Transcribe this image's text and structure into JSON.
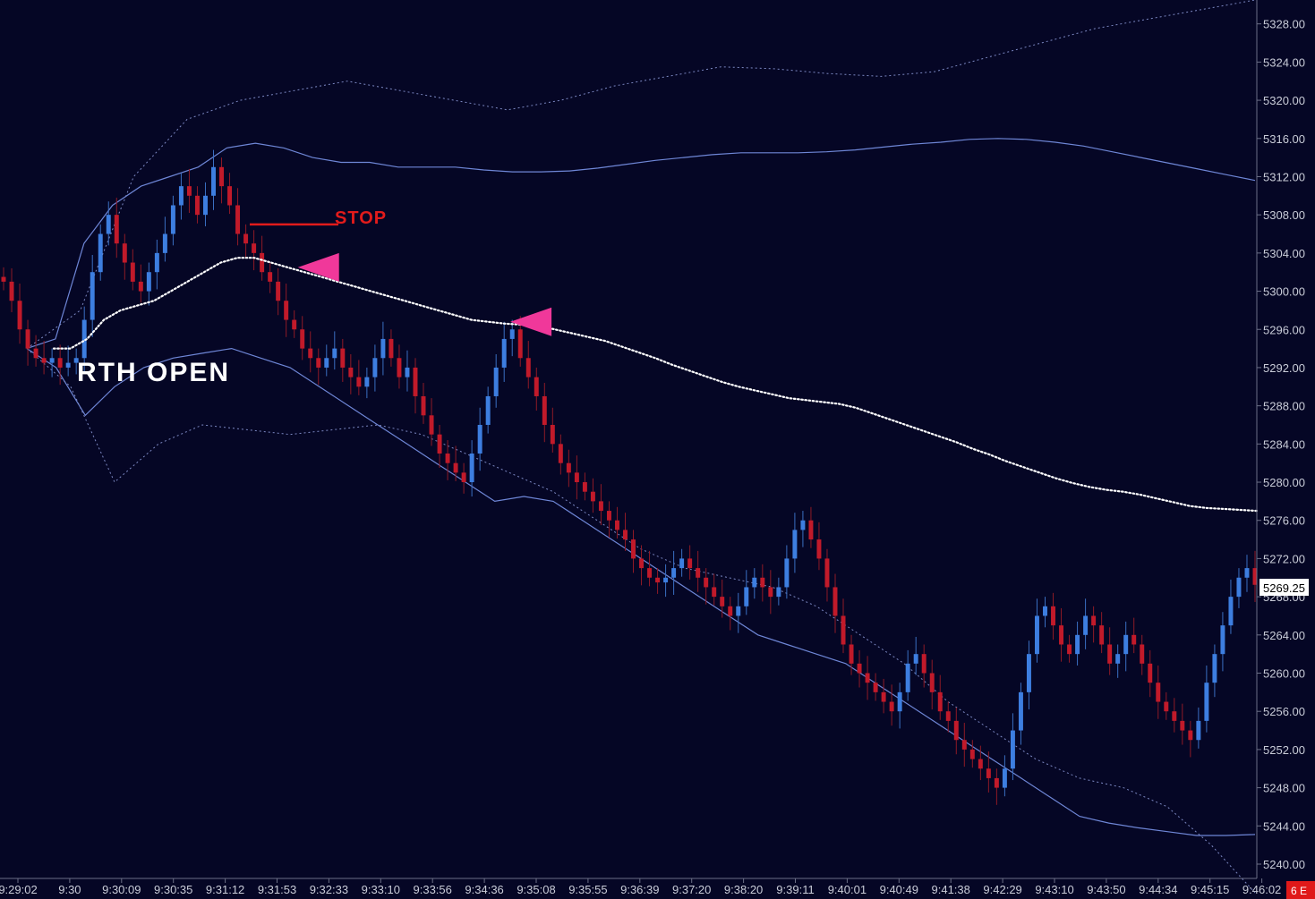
{
  "chart_data": {
    "type": "candlestick",
    "price_axis": {
      "ylim": [
        5238.5,
        5330.5
      ],
      "ticks": [
        "5328.00",
        "5324.00",
        "5320.00",
        "5316.00",
        "5312.00",
        "5308.00",
        "5304.00",
        "5300.00",
        "5296.00",
        "5292.00",
        "5288.00",
        "5284.00",
        "5280.00",
        "5276.00",
        "5272.00",
        "5268.00",
        "5264.00",
        "5260.00",
        "5256.00",
        "5252.00",
        "5248.00",
        "5244.00",
        "5240.00"
      ],
      "last_price": "5269.25"
    },
    "time_axis": {
      "ticks": [
        "9:29:02",
        "9:30",
        "9:30:09",
        "9:30:35",
        "9:31:12",
        "9:31:53",
        "9:32:33",
        "9:33:10",
        "9:33:56",
        "9:34:36",
        "9:35:08",
        "9:35:55",
        "9:36:39",
        "9:37:20",
        "9:38:20",
        "9:39:11",
        "9:40:01",
        "9:40:49",
        "9:41:38",
        "9:42:29",
        "9:43:10",
        "9:43:50",
        "9:44:34",
        "9:45:15",
        "9:46:02"
      ]
    },
    "corner_badge": "6 E",
    "annotations": {
      "stop_label": "STOP",
      "stop_price": 5307,
      "rth_open_label": "RTH OPEN",
      "entry_markers": [
        {
          "time_index": 5.85,
          "price": 5302.5
        },
        {
          "time_index": 9.95,
          "price": 5296.8
        }
      ]
    },
    "close_series": [
      5301,
      5299,
      5296,
      5294,
      5293,
      5292.5,
      5293,
      5292,
      5292.5,
      5293,
      5297,
      5302,
      5306,
      5308,
      5305,
      5303,
      5301,
      5300,
      5302,
      5304,
      5306,
      5309,
      5311,
      5310,
      5308,
      5310,
      5313,
      5311,
      5309,
      5306,
      5305,
      5304,
      5302,
      5301,
      5299,
      5297,
      5296,
      5294,
      5293,
      5292,
      5293,
      5294,
      5292,
      5291,
      5290,
      5291,
      5293,
      5295,
      5293,
      5291,
      5292,
      5289,
      5287,
      5285,
      5283,
      5282,
      5281,
      5280,
      5283,
      5286,
      5289,
      5292,
      5295,
      5296,
      5293,
      5291,
      5289,
      5286,
      5284,
      5282,
      5281,
      5280,
      5279,
      5278,
      5277,
      5276,
      5275,
      5274,
      5272,
      5271,
      5270,
      5269.5,
      5270,
      5271,
      5272,
      5271,
      5270,
      5269,
      5268,
      5267,
      5266,
      5267,
      5269,
      5270,
      5269,
      5268,
      5269,
      5272,
      5275,
      5276,
      5274,
      5272,
      5269,
      5266,
      5263,
      5261,
      5260,
      5259,
      5258,
      5257,
      5256,
      5258,
      5261,
      5262,
      5260,
      5258,
      5256,
      5255,
      5253,
      5252,
      5251,
      5250,
      5249,
      5248,
      5250,
      5254,
      5258,
      5262,
      5266,
      5267,
      5265,
      5263,
      5262,
      5264,
      5266,
      5265,
      5263,
      5261,
      5262,
      5264,
      5263,
      5261,
      5259,
      5257,
      5256,
      5255,
      5254,
      5253,
      5255,
      5259,
      5262,
      5265,
      5268,
      5270,
      5271,
      5269.25
    ],
    "series": [
      {
        "role": "vwap",
        "values": [
          5294,
          5294,
          5295,
          5297,
          5298,
          5298.5,
          5299,
          5300,
          5301,
          5302,
          5303,
          5303.5,
          5303.5,
          5303,
          5302.5,
          5302,
          5301.5,
          5301,
          5300.5,
          5300,
          5299.5,
          5299,
          5298.5,
          5298,
          5297.5,
          5297,
          5296.8,
          5296.6,
          5296.5,
          5296.4,
          5296,
          5295.6,
          5295.2,
          5294.8,
          5294.2,
          5293.6,
          5293,
          5292.3,
          5291.7,
          5291.1,
          5290.5,
          5290,
          5289.6,
          5289.2,
          5288.8,
          5288.6,
          5288.4,
          5288.2,
          5287.8,
          5287.2,
          5286.6,
          5286,
          5285.4,
          5284.8,
          5284.2,
          5283.5,
          5282.9,
          5282.2,
          5281.6,
          5281,
          5280.4,
          5279.9,
          5279.5,
          5279.2,
          5279,
          5278.7,
          5278.3,
          5277.9,
          5277.5,
          5277.3,
          5277.2,
          5277.1,
          5277
        ]
      },
      {
        "role": "band-upper-1",
        "values": [
          5294,
          5295,
          5305,
          5309,
          5311,
          5312,
          5313,
          5315,
          5315.5,
          5315,
          5314,
          5313.5,
          5313.5,
          5313,
          5313,
          5313,
          5312.7,
          5312.5,
          5312.5,
          5312.6,
          5312.9,
          5313.3,
          5313.7,
          5314,
          5314.3,
          5314.5,
          5314.5,
          5314.5,
          5314.6,
          5314.8,
          5315.1,
          5315.4,
          5315.6,
          5315.9,
          5316,
          5315.9,
          5315.6,
          5315.2,
          5314.6,
          5314,
          5313.4,
          5312.8,
          5312.2,
          5311.6
        ]
      },
      {
        "role": "band-lower-1",
        "values": [
          5294,
          5292,
          5287,
          5290,
          5292,
          5293,
          5293.5,
          5294,
          5293,
          5292,
          5290,
          5288,
          5286,
          5284,
          5282,
          5280,
          5278,
          5278.5,
          5278,
          5276,
          5274,
          5272,
          5270,
          5268,
          5266,
          5264,
          5263,
          5262,
          5261,
          5259,
          5257,
          5255,
          5253,
          5251,
          5249,
          5247,
          5245,
          5244.3,
          5243.8,
          5243.4,
          5243,
          5243,
          5243.1
        ]
      },
      {
        "role": "band-upper-2",
        "values": [
          5294,
          5298,
          5312,
          5318,
          5320,
          5321,
          5322,
          5321,
          5320,
          5319,
          5320,
          5321.5,
          5322.5,
          5323.5,
          5323.3,
          5322.8,
          5322.5,
          5323,
          5324.5,
          5326,
          5327.5,
          5328.5,
          5329.5,
          5330.5
        ]
      },
      {
        "role": "band-lower-2",
        "values": [
          5294,
          5290,
          5280,
          5284,
          5286,
          5285.5,
          5285,
          5285.5,
          5286,
          5285,
          5283,
          5281,
          5279,
          5276,
          5273,
          5271,
          5270,
          5269,
          5267,
          5264,
          5261,
          5257,
          5254,
          5251,
          5249,
          5248,
          5246,
          5242,
          5237
        ]
      }
    ]
  }
}
